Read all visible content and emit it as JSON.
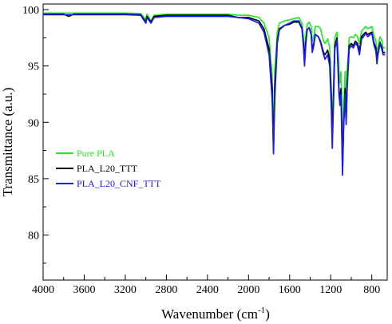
{
  "chart_data": {
    "type": "line",
    "title": "",
    "xlabel": "Wavenumber (cm",
    "xlabel_superscript": "-1",
    "xlabel_close": ")",
    "ylabel": "Transmittance (a.u.)",
    "xlim": [
      4000,
      650
    ],
    "x_reversed": true,
    "ylim": [
      76,
      100.5
    ],
    "x_ticks": [
      4000,
      3600,
      3200,
      2800,
      2400,
      2000,
      1600,
      1200,
      800
    ],
    "y_ticks": [
      80,
      85,
      90,
      95,
      100
    ],
    "grid": false,
    "legend_position": "lower-left",
    "series": [
      {
        "name": "Pure PLA",
        "color": "#22ee22",
        "points": [
          [
            4000,
            99.7
          ],
          [
            3800,
            99.7
          ],
          [
            3700,
            99.7
          ],
          [
            3600,
            99.7
          ],
          [
            3400,
            99.7
          ],
          [
            3200,
            99.7
          ],
          [
            3050,
            99.65
          ],
          [
            3000,
            99.1
          ],
          [
            2990,
            99.6
          ],
          [
            2950,
            99.0
          ],
          [
            2920,
            99.5
          ],
          [
            2800,
            99.6
          ],
          [
            2600,
            99.6
          ],
          [
            2400,
            99.6
          ],
          [
            2200,
            99.6
          ],
          [
            2100,
            99.5
          ],
          [
            2000,
            99.5
          ],
          [
            1900,
            99.3
          ],
          [
            1850,
            98.8
          ],
          [
            1800,
            97.5
          ],
          [
            1770,
            94.0
          ],
          [
            1757,
            88.5
          ],
          [
            1745,
            94.5
          ],
          [
            1720,
            98.0
          ],
          [
            1700,
            98.8
          ],
          [
            1650,
            99.0
          ],
          [
            1600,
            99.1
          ],
          [
            1560,
            99.2
          ],
          [
            1510,
            99.3
          ],
          [
            1480,
            98.8
          ],
          [
            1465,
            97.5
          ],
          [
            1455,
            95.8
          ],
          [
            1445,
            97.5
          ],
          [
            1430,
            98.7
          ],
          [
            1410,
            98.9
          ],
          [
            1390,
            98.5
          ],
          [
            1380,
            97.2
          ],
          [
            1365,
            97.6
          ],
          [
            1350,
            98.5
          ],
          [
            1320,
            98.5
          ],
          [
            1300,
            98.3
          ],
          [
            1270,
            97.2
          ],
          [
            1255,
            97.0
          ],
          [
            1230,
            97.4
          ],
          [
            1210,
            96.6
          ],
          [
            1195,
            93.0
          ],
          [
            1185,
            89.5
          ],
          [
            1172,
            93.5
          ],
          [
            1160,
            97.5
          ],
          [
            1140,
            98.0
          ],
          [
            1130,
            96.5
          ],
          [
            1120,
            94.5
          ],
          [
            1110,
            93.5
          ],
          [
            1100,
            94.5
          ],
          [
            1095,
            92.8
          ],
          [
            1085,
            87.0
          ],
          [
            1075,
            91.0
          ],
          [
            1060,
            94.5
          ],
          [
            1050,
            91.5
          ],
          [
            1040,
            94.5
          ],
          [
            1020,
            97.5
          ],
          [
            1000,
            97.6
          ],
          [
            980,
            97.5
          ],
          [
            960,
            97.8
          ],
          [
            940,
            97.6
          ],
          [
            920,
            97.0
          ],
          [
            900,
            98.1
          ],
          [
            880,
            98.3
          ],
          [
            860,
            98.5
          ],
          [
            840,
            98.3
          ],
          [
            800,
            98.5
          ],
          [
            780,
            97.7
          ],
          [
            760,
            97.2
          ],
          [
            750,
            96.0
          ],
          [
            740,
            96.7
          ],
          [
            720,
            97.6
          ],
          [
            700,
            97.2
          ],
          [
            690,
            96.6
          ],
          [
            670,
            96.6
          ]
        ]
      },
      {
        "name": "PLA_L20_TTT",
        "color": "#000000",
        "points": [
          [
            4000,
            99.6
          ],
          [
            3800,
            99.6
          ],
          [
            3750,
            99.4
          ],
          [
            3700,
            99.6
          ],
          [
            3600,
            99.6
          ],
          [
            3400,
            99.6
          ],
          [
            3200,
            99.6
          ],
          [
            3050,
            99.55
          ],
          [
            3000,
            98.9
          ],
          [
            2990,
            99.4
          ],
          [
            2950,
            98.9
          ],
          [
            2920,
            99.4
          ],
          [
            2800,
            99.5
          ],
          [
            2600,
            99.5
          ],
          [
            2400,
            99.5
          ],
          [
            2200,
            99.5
          ],
          [
            2100,
            99.3
          ],
          [
            2000,
            99.3
          ],
          [
            1900,
            99.0
          ],
          [
            1850,
            98.3
          ],
          [
            1800,
            96.5
          ],
          [
            1770,
            93.0
          ],
          [
            1757,
            87.5
          ],
          [
            1745,
            93.0
          ],
          [
            1720,
            97.3
          ],
          [
            1700,
            98.3
          ],
          [
            1650,
            98.6
          ],
          [
            1600,
            98.7
          ],
          [
            1560,
            98.9
          ],
          [
            1510,
            98.9
          ],
          [
            1480,
            98.3
          ],
          [
            1465,
            97.0
          ],
          [
            1455,
            95.3
          ],
          [
            1445,
            97.0
          ],
          [
            1430,
            98.2
          ],
          [
            1410,
            98.4
          ],
          [
            1390,
            97.8
          ],
          [
            1380,
            96.5
          ],
          [
            1365,
            97.0
          ],
          [
            1350,
            97.8
          ],
          [
            1320,
            97.6
          ],
          [
            1300,
            97.2
          ],
          [
            1270,
            96.2
          ],
          [
            1255,
            96.0
          ],
          [
            1230,
            96.4
          ],
          [
            1210,
            95.6
          ],
          [
            1195,
            92.5
          ],
          [
            1185,
            88.5
          ],
          [
            1172,
            92.8
          ],
          [
            1160,
            96.8
          ],
          [
            1140,
            97.5
          ],
          [
            1130,
            95.5
          ],
          [
            1120,
            93.0
          ],
          [
            1110,
            92.0
          ],
          [
            1100,
            93.0
          ],
          [
            1095,
            91.0
          ],
          [
            1085,
            85.6
          ],
          [
            1075,
            89.5
          ],
          [
            1060,
            93.0
          ],
          [
            1050,
            90.0
          ],
          [
            1040,
            93.5
          ],
          [
            1020,
            96.8
          ],
          [
            1000,
            97.0
          ],
          [
            980,
            96.8
          ],
          [
            960,
            97.2
          ],
          [
            940,
            97.0
          ],
          [
            920,
            96.4
          ],
          [
            900,
            97.6
          ],
          [
            880,
            97.8
          ],
          [
            860,
            98.0
          ],
          [
            840,
            97.8
          ],
          [
            800,
            98.0
          ],
          [
            780,
            97.1
          ],
          [
            760,
            96.6
          ],
          [
            750,
            95.5
          ],
          [
            740,
            96.2
          ],
          [
            720,
            97.1
          ],
          [
            700,
            96.6
          ],
          [
            690,
            96.2
          ],
          [
            670,
            96.2
          ]
        ]
      },
      {
        "name": "PLA_L20_CNF_TTT",
        "color": "#1a1aee",
        "points": [
          [
            4000,
            99.55
          ],
          [
            3800,
            99.55
          ],
          [
            3700,
            99.55
          ],
          [
            3600,
            99.55
          ],
          [
            3400,
            99.55
          ],
          [
            3200,
            99.55
          ],
          [
            3050,
            99.5
          ],
          [
            3000,
            98.8
          ],
          [
            2990,
            99.3
          ],
          [
            2950,
            98.8
          ],
          [
            2920,
            99.3
          ],
          [
            2800,
            99.4
          ],
          [
            2600,
            99.4
          ],
          [
            2400,
            99.4
          ],
          [
            2200,
            99.4
          ],
          [
            2100,
            99.3
          ],
          [
            2000,
            99.2
          ],
          [
            1900,
            98.8
          ],
          [
            1850,
            98.0
          ],
          [
            1800,
            96.0
          ],
          [
            1770,
            92.0
          ],
          [
            1757,
            87.2
          ],
          [
            1745,
            92.0
          ],
          [
            1720,
            97.0
          ],
          [
            1700,
            98.2
          ],
          [
            1650,
            98.6
          ],
          [
            1600,
            98.8
          ],
          [
            1560,
            99.0
          ],
          [
            1510,
            99.0
          ],
          [
            1480,
            98.4
          ],
          [
            1465,
            96.6
          ],
          [
            1455,
            95.0
          ],
          [
            1445,
            96.6
          ],
          [
            1430,
            98.2
          ],
          [
            1410,
            98.4
          ],
          [
            1390,
            97.8
          ],
          [
            1380,
            96.2
          ],
          [
            1365,
            96.8
          ],
          [
            1350,
            97.8
          ],
          [
            1320,
            97.6
          ],
          [
            1300,
            97.1
          ],
          [
            1270,
            96.0
          ],
          [
            1255,
            95.6
          ],
          [
            1230,
            96.0
          ],
          [
            1210,
            95.0
          ],
          [
            1195,
            91.5
          ],
          [
            1185,
            87.7
          ],
          [
            1172,
            92.0
          ],
          [
            1160,
            96.5
          ],
          [
            1140,
            97.3
          ],
          [
            1130,
            95.0
          ],
          [
            1120,
            92.5
          ],
          [
            1110,
            91.5
          ],
          [
            1100,
            92.5
          ],
          [
            1095,
            90.0
          ],
          [
            1085,
            85.3
          ],
          [
            1075,
            89.5
          ],
          [
            1060,
            92.5
          ],
          [
            1050,
            89.8
          ],
          [
            1040,
            93.0
          ],
          [
            1020,
            96.5
          ],
          [
            1000,
            96.8
          ],
          [
            980,
            96.6
          ],
          [
            960,
            97.0
          ],
          [
            940,
            96.8
          ],
          [
            920,
            96.0
          ],
          [
            900,
            97.4
          ],
          [
            880,
            97.6
          ],
          [
            860,
            97.9
          ],
          [
            840,
            97.6
          ],
          [
            800,
            97.9
          ],
          [
            780,
            96.9
          ],
          [
            760,
            96.3
          ],
          [
            750,
            95.2
          ],
          [
            740,
            96.0
          ],
          [
            720,
            97.0
          ],
          [
            700,
            96.4
          ],
          [
            690,
            96.0
          ],
          [
            670,
            96.0
          ]
        ]
      }
    ]
  }
}
